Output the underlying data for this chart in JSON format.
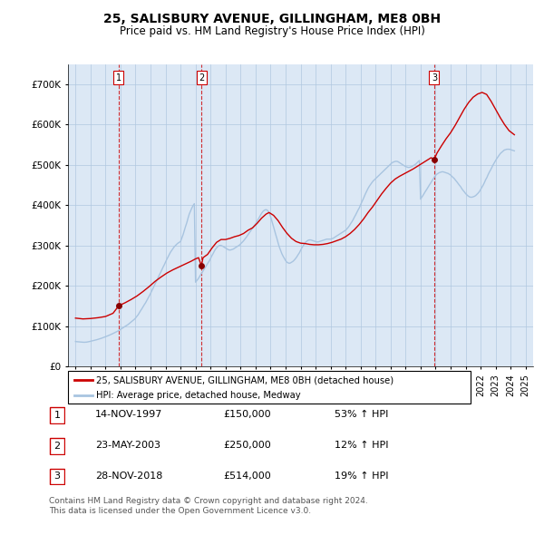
{
  "title": "25, SALISBURY AVENUE, GILLINGHAM, ME8 0BH",
  "subtitle": "Price paid vs. HM Land Registry's House Price Index (HPI)",
  "ylabel_ticks": [
    "£0",
    "£100K",
    "£200K",
    "£300K",
    "£400K",
    "£500K",
    "£600K",
    "£700K"
  ],
  "ytick_values": [
    0,
    100000,
    200000,
    300000,
    400000,
    500000,
    600000,
    700000
  ],
  "ylim": [
    0,
    750000
  ],
  "xlim_start": 1994.5,
  "xlim_end": 2025.5,
  "sale_dates": [
    1997.87,
    2003.39,
    2018.91
  ],
  "sale_prices": [
    150000,
    250000,
    514000
  ],
  "sale_labels": [
    "1",
    "2",
    "3"
  ],
  "hpi_color": "#a8c4e0",
  "sold_color": "#cc0000",
  "marker_color": "#880000",
  "dashed_color": "#cc0000",
  "background_color": "#dce8f5",
  "grid_color": "#b0c8e0",
  "legend_sold_label": "25, SALISBURY AVENUE, GILLINGHAM, ME8 0BH (detached house)",
  "legend_hpi_label": "HPI: Average price, detached house, Medway",
  "table_rows": [
    [
      "1",
      "14-NOV-1997",
      "£150,000",
      "53% ↑ HPI"
    ],
    [
      "2",
      "23-MAY-2003",
      "£250,000",
      "12% ↑ HPI"
    ],
    [
      "3",
      "28-NOV-2018",
      "£514,000",
      "19% ↑ HPI"
    ]
  ],
  "footer": "Contains HM Land Registry data © Crown copyright and database right 2024.\nThis data is licensed under the Open Government Licence v3.0.",
  "hpi_years": [
    1995.0,
    1995.08,
    1995.17,
    1995.25,
    1995.33,
    1995.42,
    1995.5,
    1995.58,
    1995.67,
    1995.75,
    1995.83,
    1995.92,
    1996.0,
    1996.08,
    1996.17,
    1996.25,
    1996.33,
    1996.42,
    1996.5,
    1996.58,
    1996.67,
    1996.75,
    1996.83,
    1996.92,
    1997.0,
    1997.08,
    1997.17,
    1997.25,
    1997.33,
    1997.42,
    1997.5,
    1997.58,
    1997.67,
    1997.75,
    1997.83,
    1997.92,
    1998.0,
    1998.08,
    1998.17,
    1998.25,
    1998.33,
    1998.42,
    1998.5,
    1998.58,
    1998.67,
    1998.75,
    1998.83,
    1998.92,
    1999.0,
    1999.08,
    1999.17,
    1999.25,
    1999.33,
    1999.42,
    1999.5,
    1999.58,
    1999.67,
    1999.75,
    1999.83,
    1999.92,
    2000.0,
    2000.08,
    2000.17,
    2000.25,
    2000.33,
    2000.42,
    2000.5,
    2000.58,
    2000.67,
    2000.75,
    2000.83,
    2000.92,
    2001.0,
    2001.08,
    2001.17,
    2001.25,
    2001.33,
    2001.42,
    2001.5,
    2001.58,
    2001.67,
    2001.75,
    2001.83,
    2001.92,
    2002.0,
    2002.08,
    2002.17,
    2002.25,
    2002.33,
    2002.42,
    2002.5,
    2002.58,
    2002.67,
    2002.75,
    2002.83,
    2002.92,
    2003.0,
    2003.08,
    2003.17,
    2003.25,
    2003.33,
    2003.42,
    2003.5,
    2003.58,
    2003.67,
    2003.75,
    2003.83,
    2003.92,
    2004.0,
    2004.08,
    2004.17,
    2004.25,
    2004.33,
    2004.42,
    2004.5,
    2004.58,
    2004.67,
    2004.75,
    2004.83,
    2004.92,
    2005.0,
    2005.08,
    2005.17,
    2005.25,
    2005.33,
    2005.42,
    2005.5,
    2005.58,
    2005.67,
    2005.75,
    2005.83,
    2005.92,
    2006.0,
    2006.08,
    2006.17,
    2006.25,
    2006.33,
    2006.42,
    2006.5,
    2006.58,
    2006.67,
    2006.75,
    2006.83,
    2006.92,
    2007.0,
    2007.08,
    2007.17,
    2007.25,
    2007.33,
    2007.42,
    2007.5,
    2007.58,
    2007.67,
    2007.75,
    2007.83,
    2007.92,
    2008.0,
    2008.08,
    2008.17,
    2008.25,
    2008.33,
    2008.42,
    2008.5,
    2008.58,
    2008.67,
    2008.75,
    2008.83,
    2008.92,
    2009.0,
    2009.08,
    2009.17,
    2009.25,
    2009.33,
    2009.42,
    2009.5,
    2009.58,
    2009.67,
    2009.75,
    2009.83,
    2009.92,
    2010.0,
    2010.08,
    2010.17,
    2010.25,
    2010.33,
    2010.42,
    2010.5,
    2010.58,
    2010.67,
    2010.75,
    2010.83,
    2010.92,
    2011.0,
    2011.08,
    2011.17,
    2011.25,
    2011.33,
    2011.42,
    2011.5,
    2011.58,
    2011.67,
    2011.75,
    2011.83,
    2011.92,
    2012.0,
    2012.08,
    2012.17,
    2012.25,
    2012.33,
    2012.42,
    2012.5,
    2012.58,
    2012.67,
    2012.75,
    2012.83,
    2012.92,
    2013.0,
    2013.08,
    2013.17,
    2013.25,
    2013.33,
    2013.42,
    2013.5,
    2013.58,
    2013.67,
    2013.75,
    2013.83,
    2013.92,
    2014.0,
    2014.08,
    2014.17,
    2014.25,
    2014.33,
    2014.42,
    2014.5,
    2014.58,
    2014.67,
    2014.75,
    2014.83,
    2014.92,
    2015.0,
    2015.08,
    2015.17,
    2015.25,
    2015.33,
    2015.42,
    2015.5,
    2015.58,
    2015.67,
    2015.75,
    2015.83,
    2015.92,
    2016.0,
    2016.08,
    2016.17,
    2016.25,
    2016.33,
    2016.42,
    2016.5,
    2016.58,
    2016.67,
    2016.75,
    2016.83,
    2016.92,
    2017.0,
    2017.08,
    2017.17,
    2017.25,
    2017.33,
    2017.42,
    2017.5,
    2017.58,
    2017.67,
    2017.75,
    2017.83,
    2017.92,
    2018.0,
    2018.08,
    2018.17,
    2018.25,
    2018.33,
    2018.42,
    2018.5,
    2018.58,
    2018.67,
    2018.75,
    2018.83,
    2018.92,
    2019.0,
    2019.08,
    2019.17,
    2019.25,
    2019.33,
    2019.42,
    2019.5,
    2019.58,
    2019.67,
    2019.75,
    2019.83,
    2019.92,
    2020.0,
    2020.08,
    2020.17,
    2020.25,
    2020.33,
    2020.42,
    2020.5,
    2020.58,
    2020.67,
    2020.75,
    2020.83,
    2020.92,
    2021.0,
    2021.08,
    2021.17,
    2021.25,
    2021.33,
    2021.42,
    2021.5,
    2021.58,
    2021.67,
    2021.75,
    2021.83,
    2021.92,
    2022.0,
    2022.08,
    2022.17,
    2022.25,
    2022.33,
    2022.42,
    2022.5,
    2022.58,
    2022.67,
    2022.75,
    2022.83,
    2022.92,
    2023.0,
    2023.08,
    2023.17,
    2023.25,
    2023.33,
    2023.42,
    2023.5,
    2023.58,
    2023.67,
    2023.75,
    2023.83,
    2023.92,
    2024.0,
    2024.08,
    2024.17,
    2024.25
  ],
  "hpi_values": [
    62000,
    61500,
    61200,
    60800,
    60500,
    60300,
    60100,
    60000,
    60200,
    60500,
    61000,
    61800,
    62500,
    63200,
    64000,
    64800,
    65600,
    66400,
    67300,
    68200,
    69200,
    70300,
    71400,
    72600,
    73800,
    75000,
    76300,
    77600,
    79000,
    80400,
    81800,
    83300,
    84800,
    86400,
    88000,
    90000,
    92000,
    94000,
    96000,
    98000,
    100000,
    102000,
    104000,
    106500,
    109000,
    111500,
    114000,
    117000,
    120000,
    124000,
    128000,
    133000,
    138000,
    143000,
    148000,
    153000,
    158000,
    163500,
    169000,
    175000,
    181000,
    187500,
    194000,
    200500,
    207000,
    213500,
    220000,
    226500,
    233000,
    239500,
    246000,
    252500,
    259000,
    265500,
    272000,
    278000,
    283500,
    288500,
    293000,
    297000,
    300500,
    303500,
    306000,
    308000,
    310000,
    318000,
    327000,
    337000,
    347000,
    357000,
    368000,
    378000,
    386000,
    393000,
    399000,
    404000,
    209000,
    213000,
    217000,
    222000,
    227000,
    232000,
    237000,
    242000,
    247000,
    252000,
    257000,
    262000,
    268000,
    274000,
    280000,
    286000,
    291000,
    295000,
    298000,
    300000,
    300500,
    299500,
    298000,
    296000,
    294000,
    292000,
    290000,
    289000,
    289000,
    290000,
    291000,
    293000,
    295000,
    297000,
    299000,
    301000,
    304000,
    307000,
    310500,
    314000,
    318000,
    322500,
    327000,
    331500,
    336000,
    340500,
    345000,
    349500,
    354000,
    359000,
    364500,
    370000,
    375500,
    381000,
    385000,
    387500,
    389000,
    388500,
    386000,
    380000,
    372000,
    362000,
    351000,
    340000,
    329000,
    318000,
    307000,
    297000,
    288000,
    280000,
    274000,
    268000,
    263000,
    259000,
    257000,
    256000,
    257000,
    259000,
    261000,
    264000,
    268000,
    272000,
    277000,
    282000,
    288000,
    294000,
    299000,
    304000,
    308000,
    311000,
    313000,
    314000,
    314000,
    313000,
    312000,
    311000,
    310000,
    309000,
    309000,
    310000,
    311000,
    312000,
    313000,
    314000,
    315000,
    316000,
    316000,
    316000,
    316000,
    317000,
    318000,
    320000,
    322000,
    324000,
    326000,
    328000,
    330000,
    332000,
    334000,
    336000,
    338000,
    341000,
    345000,
    349000,
    354000,
    359000,
    364000,
    370000,
    376000,
    382000,
    388000,
    394000,
    401000,
    408000,
    415000,
    422000,
    429000,
    436000,
    442000,
    447000,
    452000,
    456000,
    460000,
    463000,
    466000,
    469000,
    472000,
    475000,
    478000,
    481000,
    484000,
    487000,
    490000,
    493000,
    496000,
    499000,
    502000,
    505000,
    507000,
    508000,
    509000,
    509000,
    508000,
    506000,
    504000,
    502000,
    500000,
    498000,
    496000,
    495000,
    494000,
    494000,
    495000,
    496000,
    498000,
    500000,
    502000,
    505000,
    508000,
    511000,
    415000,
    420000,
    425000,
    430000,
    435000,
    440000,
    445000,
    450000,
    455000,
    460000,
    465000,
    470000,
    474000,
    477000,
    479000,
    481000,
    482000,
    483000,
    483000,
    482000,
    481000,
    480000,
    479000,
    477000,
    475000,
    472000,
    469000,
    466000,
    462000,
    458000,
    454000,
    450000,
    446000,
    441000,
    437000,
    433000,
    429000,
    426000,
    423000,
    421000,
    420000,
    420000,
    421000,
    422000,
    424000,
    427000,
    430000,
    434000,
    439000,
    444000,
    450000,
    456000,
    463000,
    469000,
    476000,
    482000,
    488000,
    494000,
    500000,
    506000,
    511000,
    516000,
    521000,
    525000,
    529000,
    532000,
    535000,
    537000,
    538000,
    539000,
    539000,
    539000,
    538000,
    537000,
    536000,
    535000
  ],
  "sold_years": [
    1995.0,
    1995.5,
    1996.0,
    1996.5,
    1997.0,
    1997.5,
    1997.87,
    1997.95,
    1998.3,
    1998.7,
    1999.1,
    1999.5,
    1999.9,
    2000.3,
    2000.7,
    2001.1,
    2001.5,
    2001.9,
    2002.3,
    2002.7,
    2003.0,
    2003.2,
    2003.39,
    2003.5,
    2003.8,
    2004.1,
    2004.4,
    2004.7,
    2005.0,
    2005.3,
    2005.6,
    2005.9,
    2006.2,
    2006.5,
    2006.8,
    2007.1,
    2007.4,
    2007.7,
    2007.9,
    2008.2,
    2008.5,
    2008.8,
    2009.1,
    2009.4,
    2009.7,
    2010.0,
    2010.3,
    2010.6,
    2010.9,
    2011.2,
    2011.5,
    2011.8,
    2012.1,
    2012.4,
    2012.7,
    2013.0,
    2013.3,
    2013.6,
    2013.9,
    2014.2,
    2014.5,
    2014.8,
    2015.1,
    2015.4,
    2015.7,
    2016.0,
    2016.3,
    2016.6,
    2016.9,
    2017.2,
    2017.5,
    2017.8,
    2018.1,
    2018.4,
    2018.7,
    2018.91,
    2019.1,
    2019.4,
    2019.7,
    2020.0,
    2020.3,
    2020.6,
    2020.9,
    2021.2,
    2021.5,
    2021.8,
    2022.1,
    2022.4,
    2022.7,
    2023.0,
    2023.3,
    2023.6,
    2023.9,
    2024.25
  ],
  "sold_values": [
    120000,
    118000,
    119000,
    121000,
    124000,
    132000,
    150000,
    152000,
    158000,
    166000,
    175000,
    186000,
    198000,
    211000,
    222000,
    232000,
    240000,
    247000,
    254000,
    261000,
    267000,
    270000,
    250000,
    270000,
    278000,
    294000,
    308000,
    315000,
    315000,
    318000,
    322000,
    325000,
    330000,
    338000,
    344000,
    355000,
    368000,
    378000,
    382000,
    375000,
    362000,
    345000,
    330000,
    318000,
    310000,
    306000,
    305000,
    303000,
    302000,
    302000,
    303000,
    305000,
    308000,
    312000,
    316000,
    322000,
    330000,
    340000,
    352000,
    366000,
    382000,
    396000,
    412000,
    428000,
    442000,
    455000,
    465000,
    472000,
    478000,
    484000,
    490000,
    497000,
    504000,
    511000,
    518000,
    514000,
    530000,
    548000,
    565000,
    580000,
    598000,
    618000,
    638000,
    655000,
    668000,
    676000,
    680000,
    675000,
    658000,
    638000,
    618000,
    600000,
    585000,
    575000
  ]
}
